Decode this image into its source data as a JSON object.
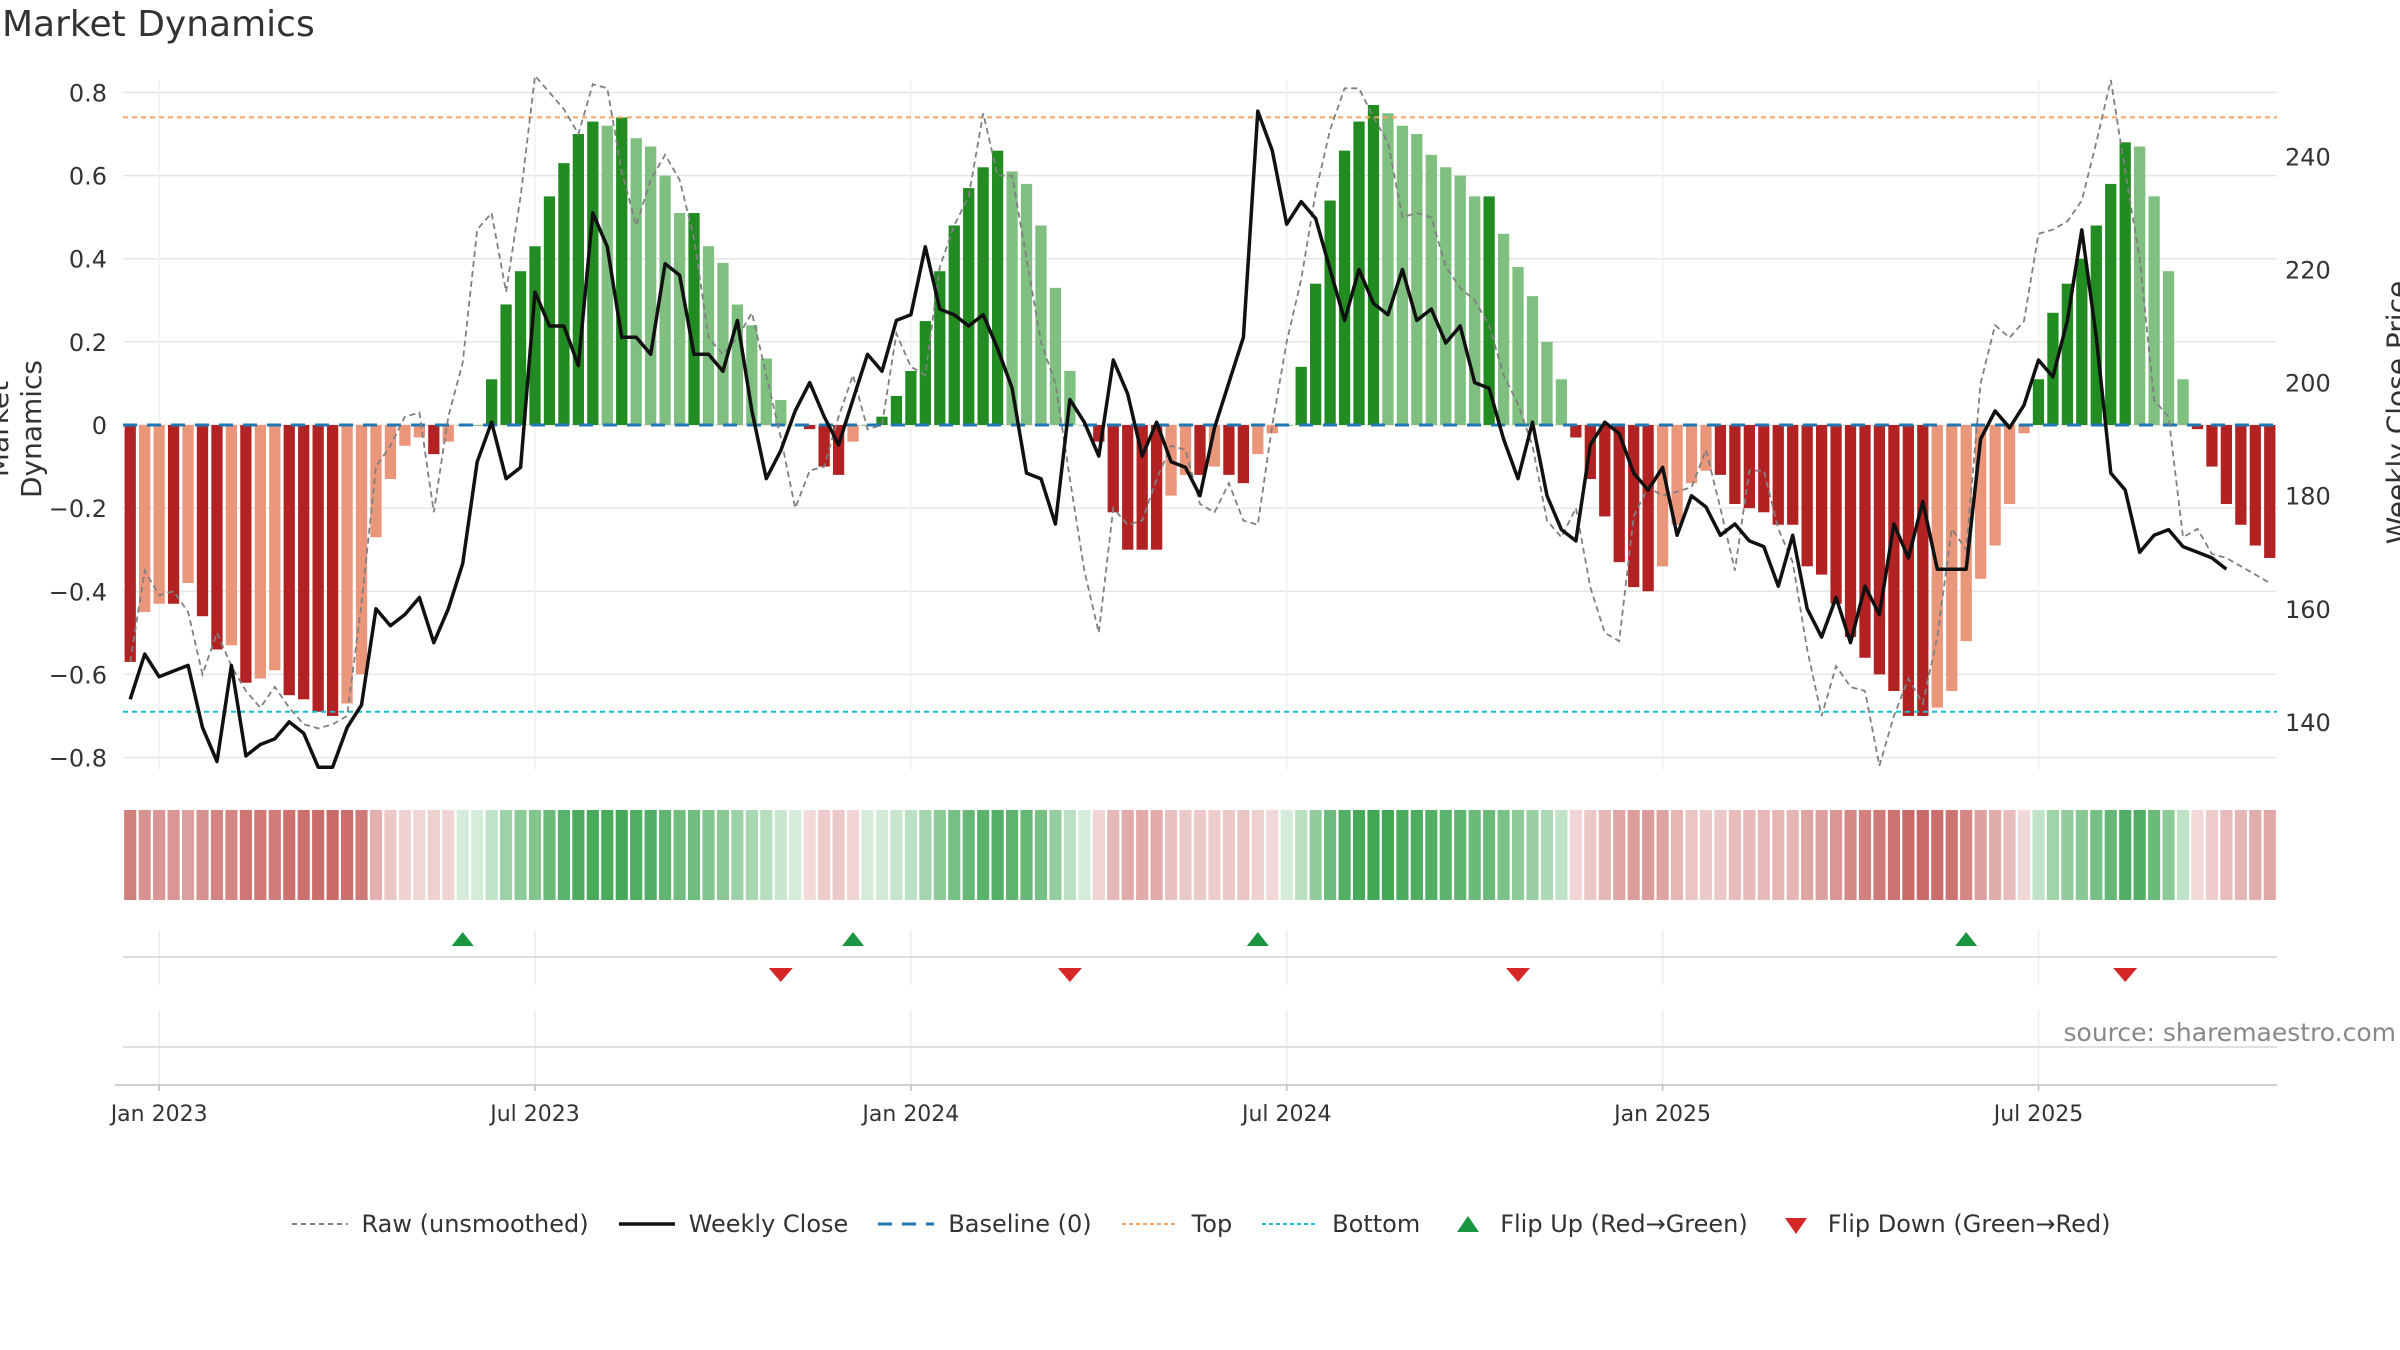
{
  "title": "Market Dynamics",
  "source_text": "source: sharemaestro.com",
  "chart_data": {
    "type": "bar",
    "ylabel": "Market Dynamics",
    "ylabel_right": "Weekly Close Price",
    "ylim": [
      -0.83,
      0.83
    ],
    "ylim_right": [
      131.5,
      253.5
    ],
    "y_ticks": [
      -0.8,
      -0.6,
      -0.4,
      -0.2,
      0,
      0.2,
      0.4,
      0.6,
      0.8
    ],
    "y_tick_labels": [
      "−0.8",
      "−0.6",
      "−0.4",
      "−0.2",
      "0",
      "0.2",
      "0.4",
      "0.6",
      "0.8"
    ],
    "y_right_ticks": [
      140,
      160,
      180,
      200,
      220,
      240
    ],
    "x_tick_labels": [
      "Jan 2023",
      "Jul 2023",
      "Jan 2024",
      "Jul 2024",
      "Jan 2025",
      "Jul 2025"
    ],
    "x_tick_weeks": [
      0,
      26,
      52,
      78,
      104,
      130
    ],
    "first_week_offset": -2,
    "grid": true,
    "legend_position": "bottom",
    "reference_lines": {
      "baseline": 0,
      "top": 0.74,
      "bottom": -0.69
    },
    "colors": {
      "strong_red": "#b22222",
      "light_red": "#e9967a",
      "strong_green": "#228b22",
      "light_green": "#7fbf7f",
      "raw": "#808080",
      "close": "#111111",
      "baseline": "#1f77b4",
      "top": "#f4a460",
      "bottom": "#17becf",
      "flip_up": "#1a9641",
      "flip_down": "#d62728",
      "ribbon_red": "#c0504d",
      "ribbon_green": "#2e9e44"
    },
    "series": [
      {
        "name": "Market Dynamics",
        "values": [
          -0.57,
          -0.45,
          -0.43,
          -0.43,
          -0.38,
          -0.46,
          -0.54,
          -0.53,
          -0.62,
          -0.61,
          -0.59,
          -0.65,
          -0.66,
          -0.69,
          -0.7,
          -0.67,
          -0.6,
          -0.27,
          -0.13,
          -0.05,
          -0.03,
          -0.07,
          -0.04,
          0,
          0,
          0.11,
          0.29,
          0.37,
          0.43,
          0.55,
          0.63,
          0.7,
          0.73,
          0.72,
          0.74,
          0.69,
          0.67,
          0.6,
          0.51,
          0.51,
          0.43,
          0.39,
          0.29,
          0.24,
          0.16,
          0.06,
          0,
          -0.01,
          -0.1,
          -0.12,
          -0.04,
          0,
          0.02,
          0.07,
          0.13,
          0.25,
          0.37,
          0.48,
          0.57,
          0.62,
          0.66,
          0.61,
          0.58,
          0.48,
          0.33,
          0.13,
          0,
          -0.04,
          -0.21,
          -0.3,
          -0.3,
          -0.3,
          -0.17,
          -0.12,
          -0.12,
          -0.1,
          -0.12,
          -0.14,
          -0.07,
          -0.02,
          0,
          0.14,
          0.34,
          0.54,
          0.66,
          0.73,
          0.77,
          0.75,
          0.72,
          0.7,
          0.65,
          0.62,
          0.6,
          0.55,
          0.55,
          0.46,
          0.38,
          0.31,
          0.2,
          0.11,
          -0.03,
          -0.13,
          -0.22,
          -0.33,
          -0.39,
          -0.4,
          -0.34,
          -0.24,
          -0.14,
          -0.11,
          -0.12,
          -0.19,
          -0.2,
          -0.21,
          -0.24,
          -0.24,
          -0.34,
          -0.36,
          -0.43,
          -0.51,
          -0.56,
          -0.6,
          -0.64,
          -0.7,
          -0.7,
          -0.68,
          -0.64,
          -0.52,
          -0.37,
          -0.29,
          -0.19,
          -0.02,
          0.11,
          0.27,
          0.34,
          0.4,
          0.48,
          0.58,
          0.68,
          0.67,
          0.55,
          0.37,
          0.11,
          -0.01,
          -0.1,
          -0.19,
          -0.24,
          -0.29,
          -0.32
        ]
      },
      {
        "name": "Raw (unsmoothed)",
        "values": [
          -0.57,
          -0.35,
          -0.41,
          -0.4,
          -0.45,
          -0.6,
          -0.5,
          -0.58,
          -0.64,
          -0.68,
          -0.63,
          -0.68,
          -0.72,
          -0.73,
          -0.72,
          -0.7,
          -0.43,
          -0.1,
          -0.05,
          0.02,
          0.03,
          -0.21,
          0.02,
          0.15,
          0.47,
          0.51,
          0.32,
          0.55,
          0.84,
          0.8,
          0.76,
          0.7,
          0.82,
          0.81,
          0.61,
          0.48,
          0.59,
          0.65,
          0.59,
          0.45,
          0.21,
          0.17,
          0.21,
          0.27,
          0.12,
          -0.03,
          -0.2,
          -0.11,
          -0.1,
          0.02,
          0.12,
          -0.01,
          0,
          0.22,
          0.14,
          0.12,
          0.38,
          0.48,
          0.55,
          0.75,
          0.6,
          0.6,
          0.4,
          0.2,
          0.1,
          -0.13,
          -0.35,
          -0.5,
          -0.2,
          -0.24,
          -0.23,
          -0.13,
          -0.05,
          -0.06,
          -0.19,
          -0.21,
          -0.14,
          -0.23,
          -0.24,
          0,
          0.2,
          0.35,
          0.56,
          0.71,
          0.81,
          0.81,
          0.74,
          0.68,
          0.5,
          0.51,
          0.5,
          0.38,
          0.33,
          0.3,
          0.24,
          0.12,
          0.05,
          -0.05,
          -0.23,
          -0.27,
          -0.2,
          -0.39,
          -0.5,
          -0.52,
          -0.22,
          -0.15,
          -0.17,
          -0.16,
          -0.15,
          -0.06,
          -0.2,
          -0.35,
          -0.11,
          -0.11,
          -0.25,
          -0.33,
          -0.54,
          -0.7,
          -0.58,
          -0.63,
          -0.64,
          -0.82,
          -0.7,
          -0.61,
          -0.67,
          -0.51,
          -0.25,
          -0.3,
          0.1,
          0.24,
          0.21,
          0.25,
          0.46,
          0.47,
          0.49,
          0.54,
          0.68,
          0.83,
          0.61,
          0.4,
          0.06,
          0.02,
          -0.27,
          -0.25,
          -0.31,
          -0.32,
          -0.34,
          -0.36,
          -0.38
        ]
      },
      {
        "name": "Weekly Close",
        "values": [
          144,
          152,
          148,
          149,
          150,
          139,
          133,
          150,
          134,
          136,
          137,
          140,
          138,
          132,
          132,
          139,
          143,
          160,
          157,
          159,
          162,
          154,
          160,
          168,
          186,
          193,
          183,
          185,
          216,
          210,
          210,
          203,
          230,
          224,
          208,
          208,
          205,
          221,
          219,
          205,
          205,
          202,
          211,
          195,
          183,
          188,
          195,
          200,
          194,
          189,
          197,
          205,
          202,
          211,
          212,
          224,
          213,
          212,
          210,
          212,
          206,
          199,
          184,
          183,
          175,
          197,
          193,
          187,
          204,
          198,
          187,
          193,
          186,
          185,
          180,
          192,
          200,
          208,
          248,
          241,
          228,
          232,
          229,
          220,
          211,
          220,
          214,
          212,
          220,
          211,
          213,
          207,
          210,
          200,
          199,
          190,
          183,
          193,
          180,
          174,
          172,
          189,
          193,
          191,
          184,
          181,
          185,
          173,
          180,
          178,
          173,
          175,
          172,
          171,
          164,
          173,
          160,
          155,
          162,
          154,
          164,
          159,
          175,
          169,
          179,
          167,
          167,
          167,
          190,
          195,
          192,
          196,
          204,
          201,
          211,
          227,
          208,
          184,
          181,
          170,
          173,
          174,
          171,
          170,
          169,
          167
        ]
      }
    ],
    "flip_up_weeks": [
      23,
      50,
      78,
      127
    ],
    "flip_down_weeks": [
      45,
      65,
      96,
      138
    ],
    "legend_entries": [
      "Raw (unsmoothed)",
      "Weekly Close",
      "Baseline (0)",
      "Top",
      "Bottom",
      "Flip Up (Red→Green)",
      "Flip Down (Green→Red)"
    ]
  }
}
